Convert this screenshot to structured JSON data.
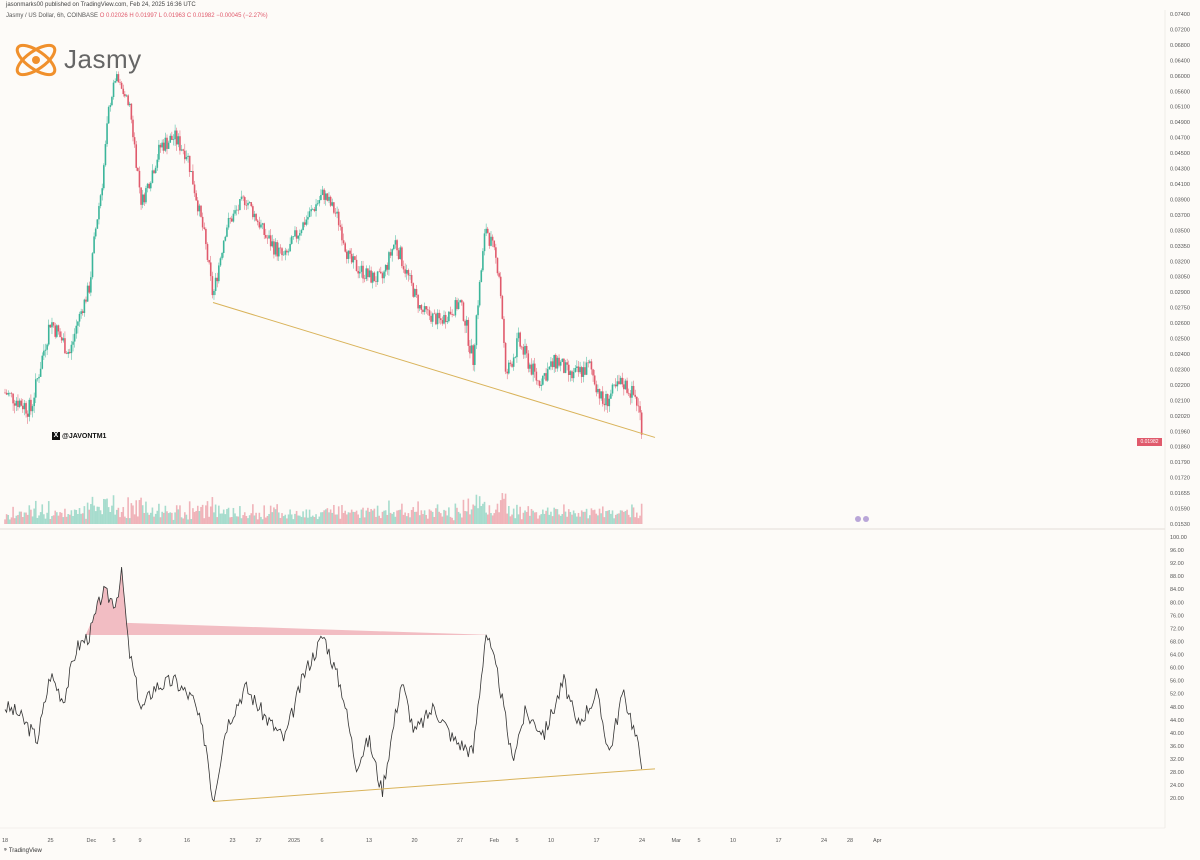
{
  "header": {
    "publisher": "jasonmarks00 published on TradingView.com, Feb 24, 2025 16:36 UTC",
    "symbol_line": "Jasmy / US Dollar, 6h, COINBASE",
    "ohlc": "O 0.02026  H 0.01997  L 0.01963  C 0.01982  −0.00045 (−2.27%)",
    "logo_text": "Jasmy",
    "handle": "@JAVONTM1"
  },
  "footer": {
    "brand": "TradingView"
  },
  "colors": {
    "up": "#3bb59a",
    "down": "#e05a6c",
    "trendline": "#d9b35a",
    "rsi_line": "#333333"
  },
  "chart_data": [
    {
      "type": "candlestick",
      "title": "",
      "ylim": [
        0.0153,
        0.0735
      ],
      "price_ticks": [
        "0.07400",
        "0.07200",
        "0.06800",
        "0.06400",
        "0.06000",
        "0.05600",
        "0.05100",
        "0.04900",
        "0.04700",
        "0.04500",
        "0.04300",
        "0.04100",
        "0.03900",
        "0.03700",
        "0.03500",
        "0.03350",
        "0.03200",
        "0.03050",
        "0.02900",
        "0.02750",
        "0.02600",
        "0.02500",
        "0.02400",
        "0.02300",
        "0.02200",
        "0.02100",
        "0.02020",
        "0.01960",
        "0.01860",
        "0.01790",
        "0.01720",
        "0.01655",
        "0.01590",
        "0.01530"
      ],
      "current_price_label": "0.01982",
      "x_labels": [
        "18",
        "25",
        "Dec",
        "5",
        "9",
        "16",
        "23",
        "27",
        "2025",
        "6",
        "13",
        "20",
        "27",
        "Feb",
        "5",
        "10",
        "17",
        "24",
        "Mar",
        "5",
        "10",
        "17",
        "24",
        "28",
        "Apr"
      ],
      "series": [
        {
          "date": "Nov 18",
          "close": 0.0215
        },
        {
          "date": "Nov 22",
          "close": 0.0205
        },
        {
          "date": "Nov 25",
          "close": 0.0262
        },
        {
          "date": "Nov 28",
          "close": 0.024
        },
        {
          "date": "Dec 1",
          "close": 0.0295
        },
        {
          "date": "Dec 3",
          "close": 0.0415
        },
        {
          "date": "Dec 5",
          "close": 0.0598
        },
        {
          "date": "Dec 7",
          "close": 0.0525
        },
        {
          "date": "Dec 9",
          "close": 0.0385
        },
        {
          "date": "Dec 12",
          "close": 0.046
        },
        {
          "date": "Dec 14",
          "close": 0.047
        },
        {
          "date": "Dec 16",
          "close": 0.045
        },
        {
          "date": "Dec 19",
          "close": 0.033
        },
        {
          "date": "Dec 20",
          "close": 0.0285
        },
        {
          "date": "Dec 22",
          "close": 0.0355
        },
        {
          "date": "Dec 25",
          "close": 0.0392
        },
        {
          "date": "Dec 28",
          "close": 0.0345
        },
        {
          "date": "Dec 31",
          "close": 0.0322
        },
        {
          "date": "Jan 3",
          "close": 0.036
        },
        {
          "date": "Jan 6",
          "close": 0.0398
        },
        {
          "date": "Jan 8",
          "close": 0.037
        },
        {
          "date": "Jan 10",
          "close": 0.032
        },
        {
          "date": "Jan 13",
          "close": 0.0305
        },
        {
          "date": "Jan 15",
          "close": 0.0302
        },
        {
          "date": "Jan 17",
          "close": 0.034
        },
        {
          "date": "Jan 19",
          "close": 0.0305
        },
        {
          "date": "Jan 21",
          "close": 0.0272
        },
        {
          "date": "Jan 24",
          "close": 0.0262
        },
        {
          "date": "Jan 27",
          "close": 0.028
        },
        {
          "date": "Jan 29",
          "close": 0.0235
        },
        {
          "date": "Jan 31",
          "close": 0.0355
        },
        {
          "date": "Feb 2",
          "close": 0.031
        },
        {
          "date": "Feb 3",
          "close": 0.0225
        },
        {
          "date": "Feb 5",
          "close": 0.0248
        },
        {
          "date": "Feb 8",
          "close": 0.0222
        },
        {
          "date": "Feb 11",
          "close": 0.0236
        },
        {
          "date": "Feb 13",
          "close": 0.0225
        },
        {
          "date": "Feb 16",
          "close": 0.0232
        },
        {
          "date": "Feb 18",
          "close": 0.0208
        },
        {
          "date": "Feb 21",
          "close": 0.0222
        },
        {
          "date": "Feb 23",
          "close": 0.0212
        },
        {
          "date": "Feb 24",
          "close": 0.0198
        }
      ],
      "trendline": [
        {
          "date": "Dec 20",
          "value": 0.028
        },
        {
          "date": "Feb 26",
          "value": 0.0192
        }
      ]
    },
    {
      "type": "line",
      "title": "",
      "ylim": [
        17,
        100
      ],
      "y_ticks": [
        "100.00",
        "96.00",
        "92.00",
        "88.00",
        "84.00",
        "80.00",
        "76.00",
        "72.00",
        "68.00",
        "64.00",
        "60.00",
        "56.00",
        "52.00",
        "48.00",
        "44.00",
        "40.00",
        "36.00",
        "32.00",
        "28.00",
        "24.00",
        "20.00"
      ],
      "series": [
        {
          "date": "Nov 18",
          "value": 48
        },
        {
          "date": "Nov 20",
          "value": 46
        },
        {
          "date": "Nov 23",
          "value": 38
        },
        {
          "date": "Nov 25",
          "value": 58
        },
        {
          "date": "Nov 27",
          "value": 50
        },
        {
          "date": "Nov 29",
          "value": 66
        },
        {
          "date": "Dec 1",
          "value": 70
        },
        {
          "date": "Dec 3",
          "value": 83
        },
        {
          "date": "Dec 5",
          "value": 80
        },
        {
          "date": "Dec 6",
          "value": 89
        },
        {
          "date": "Dec 7",
          "value": 66
        },
        {
          "date": "Dec 9",
          "value": 47
        },
        {
          "date": "Dec 11",
          "value": 54
        },
        {
          "date": "Dec 14",
          "value": 56
        },
        {
          "date": "Dec 17",
          "value": 50
        },
        {
          "date": "Dec 19",
          "value": 36
        },
        {
          "date": "Dec 20",
          "value": 19
        },
        {
          "date": "Dec 22",
          "value": 42
        },
        {
          "date": "Dec 25",
          "value": 54
        },
        {
          "date": "Dec 28",
          "value": 45
        },
        {
          "date": "Dec 31",
          "value": 38
        },
        {
          "date": "Jan 3",
          "value": 58
        },
        {
          "date": "Jan 6",
          "value": 70
        },
        {
          "date": "Jan 9",
          "value": 52
        },
        {
          "date": "Jan 11",
          "value": 30
        },
        {
          "date": "Jan 13",
          "value": 38
        },
        {
          "date": "Jan 15",
          "value": 22
        },
        {
          "date": "Jan 18",
          "value": 56
        },
        {
          "date": "Jan 20",
          "value": 40
        },
        {
          "date": "Jan 23",
          "value": 48
        },
        {
          "date": "Jan 26",
          "value": 38
        },
        {
          "date": "Jan 29",
          "value": 34
        },
        {
          "date": "Jan 31",
          "value": 71
        },
        {
          "date": "Feb 2",
          "value": 56
        },
        {
          "date": "Feb 4",
          "value": 32
        },
        {
          "date": "Feb 6",
          "value": 46
        },
        {
          "date": "Feb 9",
          "value": 40
        },
        {
          "date": "Feb 12",
          "value": 56
        },
        {
          "date": "Feb 14",
          "value": 42
        },
        {
          "date": "Feb 17",
          "value": 52
        },
        {
          "date": "Feb 19",
          "value": 34
        },
        {
          "date": "Feb 21",
          "value": 52
        },
        {
          "date": "Feb 22",
          "value": 47
        },
        {
          "date": "Feb 24",
          "value": 31
        }
      ],
      "trendline": [
        {
          "date": "Dec 20",
          "value": 19
        },
        {
          "date": "Feb 26",
          "value": 29
        }
      ]
    }
  ]
}
